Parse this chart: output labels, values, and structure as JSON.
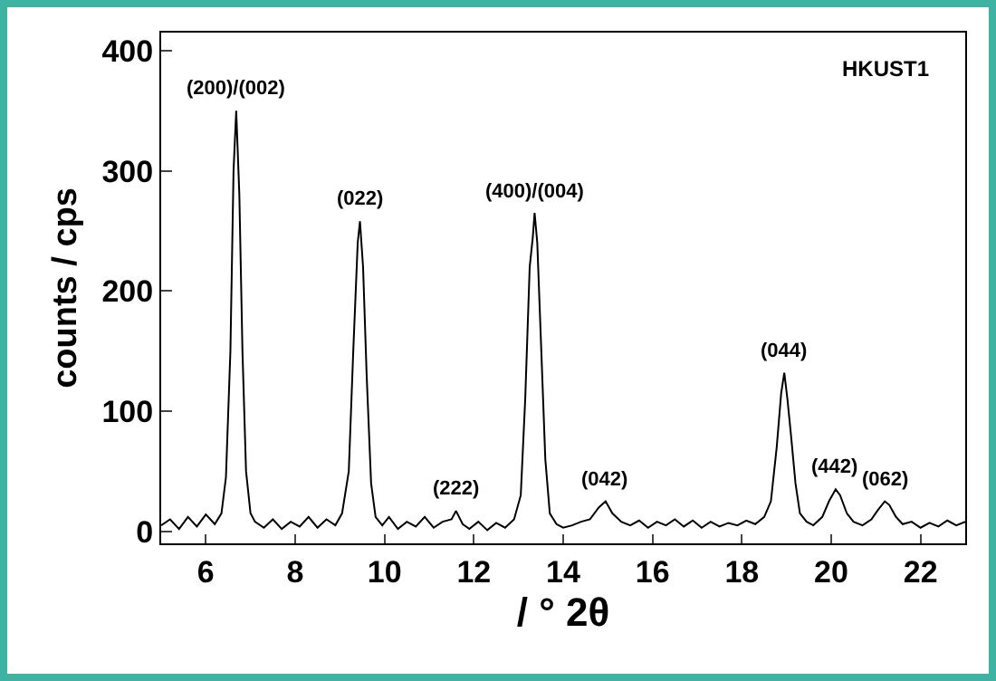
{
  "chart_data": {
    "type": "line",
    "xlabel": "/ ° 2θ",
    "ylabel": "counts / cps",
    "x": [
      5.0,
      5.2,
      5.4,
      5.6,
      5.8,
      6.0,
      6.2,
      6.35,
      6.45,
      6.55,
      6.62,
      6.68,
      6.75,
      6.82,
      6.9,
      7.0,
      7.1,
      7.3,
      7.5,
      7.7,
      7.9,
      8.1,
      8.3,
      8.5,
      8.7,
      8.9,
      9.05,
      9.2,
      9.3,
      9.4,
      9.45,
      9.52,
      9.6,
      9.7,
      9.8,
      9.95,
      10.1,
      10.3,
      10.5,
      10.7,
      10.9,
      11.1,
      11.3,
      11.5,
      11.6,
      11.75,
      11.9,
      12.1,
      12.3,
      12.5,
      12.7,
      12.9,
      13.05,
      13.15,
      13.25,
      13.32,
      13.36,
      13.42,
      13.5,
      13.6,
      13.7,
      13.85,
      14.0,
      14.2,
      14.4,
      14.6,
      14.8,
      14.95,
      15.1,
      15.3,
      15.5,
      15.7,
      15.9,
      16.1,
      16.3,
      16.5,
      16.7,
      16.9,
      17.1,
      17.3,
      17.5,
      17.7,
      17.9,
      18.1,
      18.3,
      18.5,
      18.65,
      18.78,
      18.88,
      18.95,
      19.02,
      19.1,
      19.2,
      19.3,
      19.45,
      19.6,
      19.8,
      19.95,
      20.1,
      20.2,
      20.35,
      20.5,
      20.7,
      20.9,
      21.05,
      21.2,
      21.3,
      21.45,
      21.6,
      21.8,
      22.0,
      22.2,
      22.4,
      22.6,
      22.8,
      23.0
    ],
    "series": [
      {
        "color": "#000000",
        "values": [
          5,
          10,
          2,
          12,
          4,
          14,
          6,
          15,
          45,
          150,
          300,
          350,
          280,
          150,
          50,
          15,
          8,
          3,
          10,
          2,
          8,
          4,
          12,
          3,
          10,
          5,
          15,
          50,
          150,
          240,
          258,
          220,
          130,
          40,
          12,
          5,
          12,
          2,
          8,
          4,
          12,
          3,
          8,
          10,
          17,
          6,
          2,
          8,
          1,
          7,
          3,
          10,
          30,
          110,
          220,
          245,
          265,
          240,
          160,
          60,
          15,
          6,
          3,
          5,
          8,
          10,
          20,
          25,
          15,
          8,
          5,
          9,
          3,
          8,
          5,
          10,
          4,
          9,
          3,
          8,
          4,
          7,
          5,
          9,
          6,
          12,
          25,
          70,
          115,
          132,
          110,
          80,
          40,
          15,
          8,
          5,
          12,
          25,
          35,
          30,
          15,
          8,
          5,
          10,
          18,
          25,
          22,
          12,
          6,
          8,
          3,
          7,
          4,
          9,
          5,
          8
        ]
      }
    ],
    "xlim": [
      5,
      23
    ],
    "xticks": [
      6,
      8,
      10,
      12,
      14,
      16,
      18,
      20,
      22
    ],
    "ylim": [
      -10,
      415
    ],
    "yticks": [
      0,
      100,
      200,
      300,
      400
    ],
    "grid": false,
    "marker": "none",
    "line_style": "solid",
    "annotations": [
      {
        "text": "(200)/(002)",
        "x": 6.68,
        "y": 350
      },
      {
        "text": "(022)",
        "x": 9.45,
        "y": 258
      },
      {
        "text": "(222)",
        "x": 11.6,
        "y": 17
      },
      {
        "text": "(400)/(004)",
        "x": 13.36,
        "y": 265
      },
      {
        "text": "(042)",
        "x": 14.95,
        "y": 25
      },
      {
        "text": "(044)",
        "x": 18.95,
        "y": 132
      },
      {
        "text": "(442)",
        "x": 20.1,
        "y": 35
      },
      {
        "text": "(062)",
        "x": 21.2,
        "y": 25
      },
      "HKUST1"
    ]
  }
}
